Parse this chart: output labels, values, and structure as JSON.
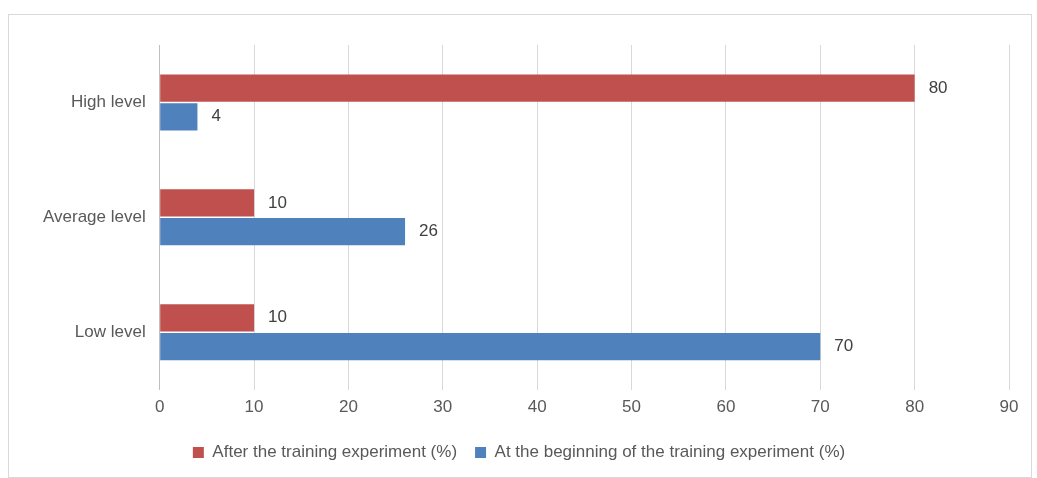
{
  "chart_data": {
    "type": "bar",
    "orientation": "horizontal",
    "categories": [
      "High level",
      "Average level",
      "Low level"
    ],
    "series": [
      {
        "name": "After the training experiment (%)",
        "color": "#c0504d",
        "values": [
          80,
          10,
          10
        ]
      },
      {
        "name": "At the beginning of the training experiment (%)",
        "color": "#4f81bd",
        "values": [
          4,
          26,
          70
        ]
      }
    ],
    "xlim": [
      0,
      90
    ],
    "xticks": [
      0,
      10,
      20,
      30,
      40,
      50,
      60,
      70,
      80,
      90
    ],
    "grid": "x",
    "legend": "bottom",
    "data_labels": true
  }
}
